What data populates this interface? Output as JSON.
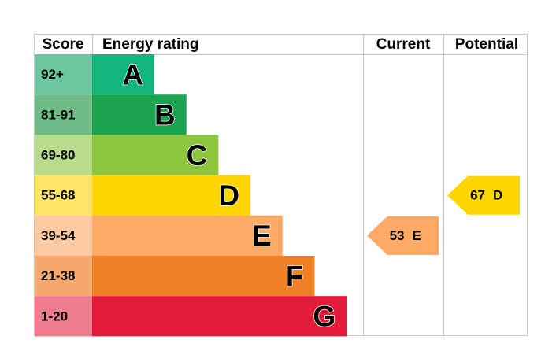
{
  "header": {
    "score": "Score",
    "rating": "Energy rating",
    "current": "Current",
    "potential": "Potential"
  },
  "rows": [
    {
      "score": "92+",
      "band": "A",
      "color": "#13b57a",
      "score_color": "#6cc7a0"
    },
    {
      "score": "81-91",
      "band": "B",
      "color": "#1ba350",
      "score_color": "#6fbb86"
    },
    {
      "score": "69-80",
      "band": "C",
      "color": "#8cc63f",
      "score_color": "#b8dc8b"
    },
    {
      "score": "55-68",
      "band": "D",
      "color": "#ffd500",
      "score_color": "#ffe366"
    },
    {
      "score": "39-54",
      "band": "E",
      "color": "#fcaa65",
      "score_color": "#fdcaa2"
    },
    {
      "score": "21-38",
      "band": "F",
      "color": "#ef8023",
      "score_color": "#f5a96d"
    },
    {
      "score": "1-20",
      "band": "G",
      "color": "#e41c3c",
      "score_color": "#ef7c8e"
    }
  ],
  "current": {
    "value": 53,
    "band": "E"
  },
  "potential": {
    "value": 67,
    "band": "D"
  }
}
